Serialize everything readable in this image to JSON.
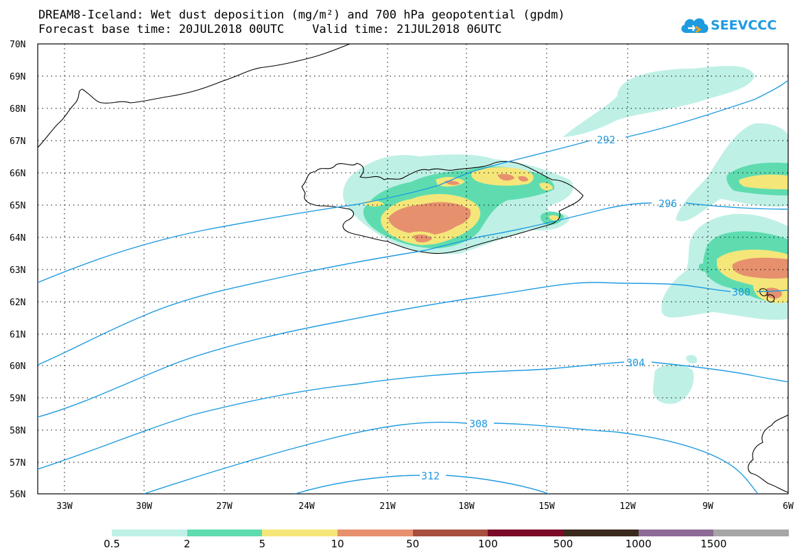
{
  "title": {
    "line1": "DREAM8-Iceland: Wet dust deposition (mg/m²) and 700 hPa geopotential (gpdm)",
    "line2": "Forecast base time: 20JUL2018 00UTC    Valid time: 21JUL2018 06UTC"
  },
  "logo": {
    "text": "SEEVCCC",
    "icon": "cloud-icon",
    "color": "#1e9be0"
  },
  "map": {
    "lon_range": [
      -34.2,
      -6.0
    ],
    "lat_range": [
      56,
      70
    ],
    "lat_labels": [
      "70N",
      "69N",
      "68N",
      "67N",
      "66N",
      "65N",
      "64N",
      "63N",
      "62N",
      "61N",
      "60N",
      "59N",
      "58N",
      "57N",
      "56N"
    ],
    "lon_labels": [
      "33W",
      "30W",
      "27W",
      "24W",
      "21W",
      "18W",
      "15W",
      "12W",
      "9W",
      "6W"
    ],
    "contour_color": "#1e9be0",
    "contour_labels": [
      "292",
      "296",
      "300",
      "304",
      "308",
      "312"
    ],
    "deposition_colors": {
      "light": "#bff0e6",
      "green": "#5edcb0",
      "yellow": "#f5e67a",
      "orange": "#e6906e"
    }
  },
  "legend": {
    "colors": [
      "#bff0e6",
      "#5edcb0",
      "#f5e67a",
      "#e6906e",
      "#a8503f",
      "#7a0a28",
      "#3a2a1c",
      "#8e6a96",
      "#a6a6a6"
    ],
    "labels": [
      "0.5",
      "2",
      "5",
      "10",
      "50",
      "100",
      "500",
      "1000",
      "1500"
    ]
  }
}
